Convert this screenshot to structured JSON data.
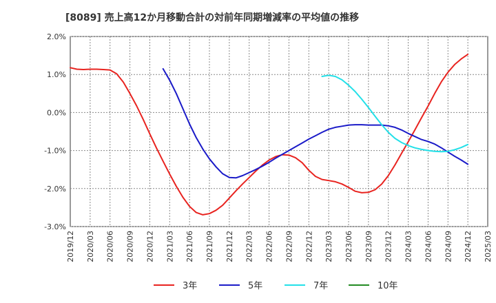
{
  "chart_data": {
    "type": "line",
    "title": "[8089]  売上高12か月移動合計の対前年同期増減率の平均値の推移",
    "ylim": [
      -3.0,
      2.0
    ],
    "yticks": [
      2.0,
      1.0,
      0.0,
      -1.0,
      -2.0,
      -3.0
    ],
    "ytick_labels": [
      "2.0%",
      "1.0%",
      "0.0%",
      "-1.0%",
      "-2.0%",
      "-3.0%"
    ],
    "xlim_months": [
      0,
      63
    ],
    "x_tick_labels": [
      "2019/12",
      "2020/03",
      "2020/06",
      "2020/09",
      "2020/12",
      "2021/03",
      "2021/06",
      "2021/09",
      "2021/12",
      "2022/03",
      "2022/06",
      "2022/09",
      "2022/12",
      "2023/03",
      "2023/06",
      "2023/09",
      "2023/12",
      "2024/03",
      "2024/06",
      "2024/09",
      "2024/12",
      "2025/03"
    ],
    "x_unit": "months since 2019/12",
    "grid": true,
    "legend_position": "bottom",
    "series": [
      {
        "name": "3年",
        "color": "#e8231f",
        "x": [
          0,
          1,
          2,
          3,
          4,
          5,
          6,
          7,
          8,
          9,
          10,
          11,
          12,
          13,
          14,
          15,
          16,
          17,
          18,
          19,
          20,
          21,
          22,
          23,
          24,
          25,
          26,
          27,
          28,
          29,
          30,
          31,
          32,
          33,
          34,
          35,
          36,
          37,
          38,
          39,
          40,
          41,
          42,
          43,
          44,
          45,
          46,
          47,
          48,
          49,
          50,
          51,
          52,
          53,
          54,
          55,
          56,
          57,
          58,
          59,
          60
        ],
        "y": [
          1.18,
          1.14,
          1.13,
          1.14,
          1.14,
          1.13,
          1.12,
          1.02,
          0.8,
          0.5,
          0.18,
          -0.18,
          -0.56,
          -0.93,
          -1.28,
          -1.62,
          -1.94,
          -2.23,
          -2.47,
          -2.63,
          -2.69,
          -2.66,
          -2.57,
          -2.44,
          -2.25,
          -2.06,
          -1.88,
          -1.71,
          -1.54,
          -1.38,
          -1.25,
          -1.16,
          -1.11,
          -1.12,
          -1.19,
          -1.32,
          -1.52,
          -1.68,
          -1.76,
          -1.79,
          -1.82,
          -1.88,
          -1.97,
          -2.07,
          -2.11,
          -2.1,
          -2.03,
          -1.88,
          -1.66,
          -1.38,
          -1.07,
          -0.77,
          -0.46,
          -0.14,
          0.17,
          0.5,
          0.81,
          1.06,
          1.26,
          1.41,
          1.53
        ]
      },
      {
        "name": "5年",
        "color": "#1a1ac8",
        "x": [
          14,
          15,
          16,
          17,
          18,
          19,
          20,
          21,
          22,
          23,
          24,
          25,
          26,
          27,
          28,
          29,
          30,
          31,
          32,
          33,
          34,
          35,
          36,
          37,
          38,
          39,
          40,
          41,
          42,
          43,
          44,
          45,
          46,
          47,
          48,
          49,
          50,
          51,
          52,
          53,
          54,
          55,
          56,
          57,
          58,
          59,
          60
        ],
        "y": [
          1.15,
          0.85,
          0.5,
          0.1,
          -0.3,
          -0.66,
          -0.96,
          -1.22,
          -1.43,
          -1.61,
          -1.71,
          -1.72,
          -1.66,
          -1.58,
          -1.5,
          -1.41,
          -1.31,
          -1.2,
          -1.1,
          -1.0,
          -0.9,
          -0.8,
          -0.7,
          -0.61,
          -0.52,
          -0.44,
          -0.39,
          -0.36,
          -0.33,
          -0.32,
          -0.32,
          -0.33,
          -0.33,
          -0.33,
          -0.35,
          -0.39,
          -0.46,
          -0.55,
          -0.63,
          -0.71,
          -0.76,
          -0.83,
          -0.93,
          -1.04,
          -1.15,
          -1.25,
          -1.36
        ]
      },
      {
        "name": "7年",
        "color": "#22e0e8",
        "x": [
          38,
          39,
          40,
          41,
          42,
          43,
          44,
          45,
          46,
          47,
          48,
          49,
          50,
          51,
          52,
          53,
          54,
          55,
          56,
          57,
          58,
          59,
          60
        ],
        "y": [
          0.95,
          0.98,
          0.95,
          0.86,
          0.72,
          0.55,
          0.35,
          0.13,
          -0.1,
          -0.32,
          -0.52,
          -0.68,
          -0.79,
          -0.87,
          -0.93,
          -0.97,
          -1.0,
          -1.02,
          -1.03,
          -1.02,
          -0.98,
          -0.92,
          -0.84
        ]
      },
      {
        "name": "10年",
        "color": "#228b22",
        "x": [],
        "y": []
      }
    ]
  }
}
